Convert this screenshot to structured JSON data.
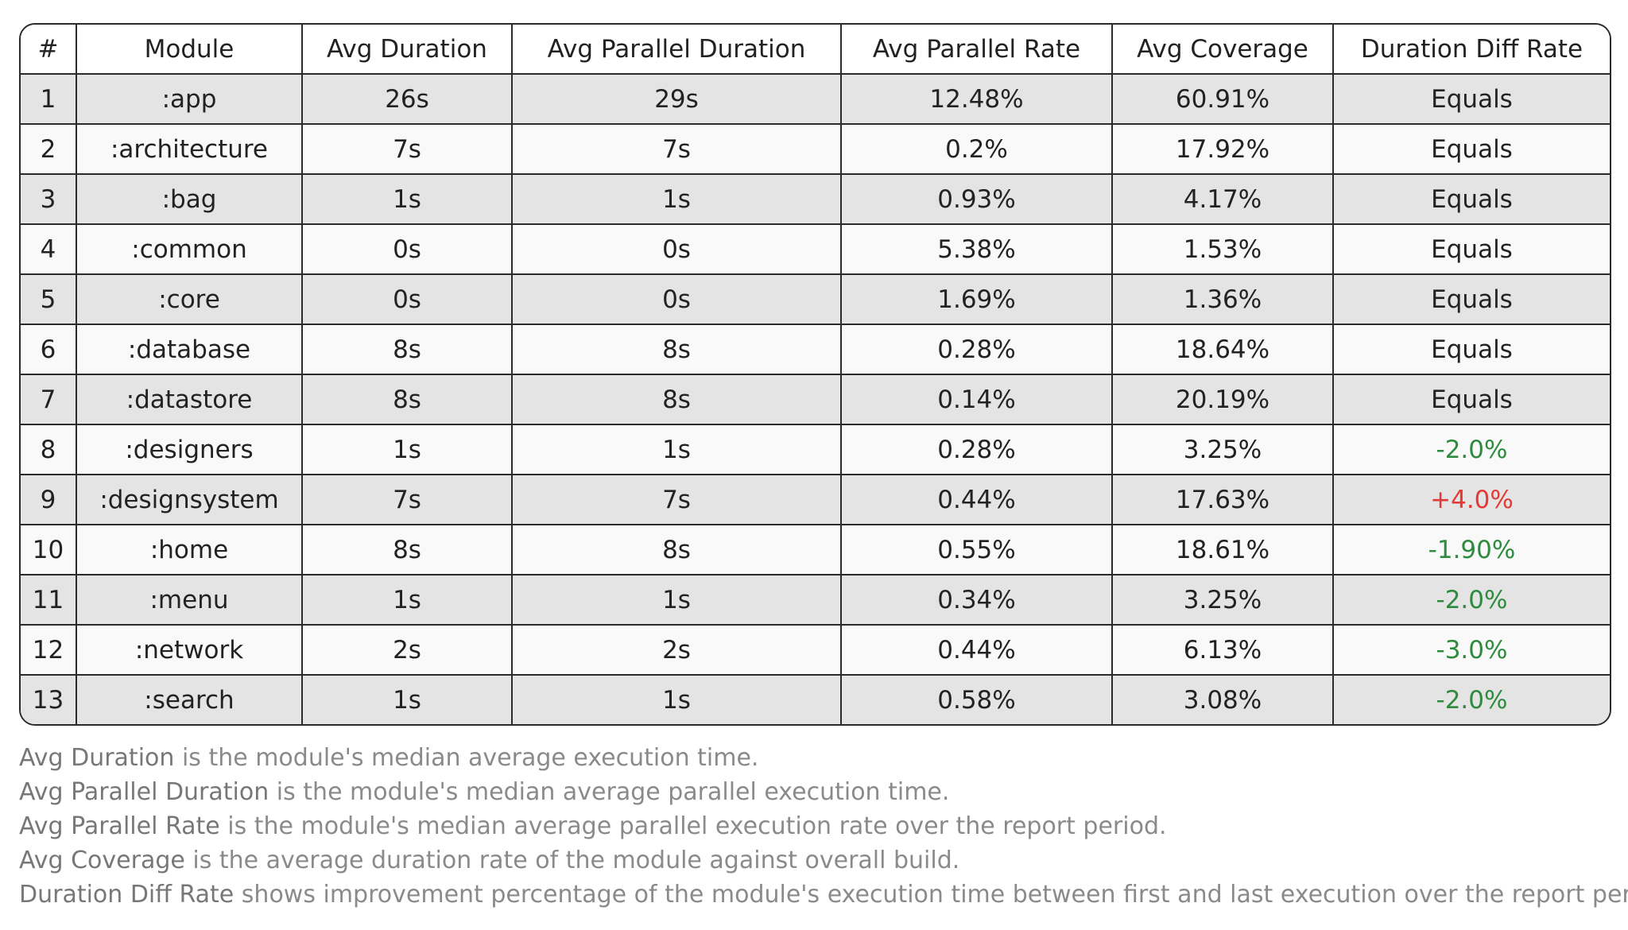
{
  "table": {
    "headers": [
      "#",
      "Module",
      "Avg Duration",
      "Avg Parallel Duration",
      "Avg Parallel Rate",
      "Avg Coverage",
      "Duration Diff Rate"
    ],
    "rows": [
      {
        "index": "1",
        "module": ":app",
        "avg_duration": "26s",
        "avg_parallel_duration": "29s",
        "avg_parallel_rate": "12.48%",
        "avg_coverage": "60.91%",
        "duration_diff_rate": "Equals",
        "diff_trend": "neutral"
      },
      {
        "index": "2",
        "module": ":architecture",
        "avg_duration": "7s",
        "avg_parallel_duration": "7s",
        "avg_parallel_rate": "0.2%",
        "avg_coverage": "17.92%",
        "duration_diff_rate": "Equals",
        "diff_trend": "neutral"
      },
      {
        "index": "3",
        "module": ":bag",
        "avg_duration": "1s",
        "avg_parallel_duration": "1s",
        "avg_parallel_rate": "0.93%",
        "avg_coverage": "4.17%",
        "duration_diff_rate": "Equals",
        "diff_trend": "neutral"
      },
      {
        "index": "4",
        "module": ":common",
        "avg_duration": "0s",
        "avg_parallel_duration": "0s",
        "avg_parallel_rate": "5.38%",
        "avg_coverage": "1.53%",
        "duration_diff_rate": "Equals",
        "diff_trend": "neutral"
      },
      {
        "index": "5",
        "module": ":core",
        "avg_duration": "0s",
        "avg_parallel_duration": "0s",
        "avg_parallel_rate": "1.69%",
        "avg_coverage": "1.36%",
        "duration_diff_rate": "Equals",
        "diff_trend": "neutral"
      },
      {
        "index": "6",
        "module": ":database",
        "avg_duration": "8s",
        "avg_parallel_duration": "8s",
        "avg_parallel_rate": "0.28%",
        "avg_coverage": "18.64%",
        "duration_diff_rate": "Equals",
        "diff_trend": "neutral"
      },
      {
        "index": "7",
        "module": ":datastore",
        "avg_duration": "8s",
        "avg_parallel_duration": "8s",
        "avg_parallel_rate": "0.14%",
        "avg_coverage": "20.19%",
        "duration_diff_rate": "Equals",
        "diff_trend": "neutral"
      },
      {
        "index": "8",
        "module": ":designers",
        "avg_duration": "1s",
        "avg_parallel_duration": "1s",
        "avg_parallel_rate": "0.28%",
        "avg_coverage": "3.25%",
        "duration_diff_rate": "-2.0%",
        "diff_trend": "good"
      },
      {
        "index": "9",
        "module": ":designsystem",
        "avg_duration": "7s",
        "avg_parallel_duration": "7s",
        "avg_parallel_rate": "0.44%",
        "avg_coverage": "17.63%",
        "duration_diff_rate": "+4.0%",
        "diff_trend": "bad"
      },
      {
        "index": "10",
        "module": ":home",
        "avg_duration": "8s",
        "avg_parallel_duration": "8s",
        "avg_parallel_rate": "0.55%",
        "avg_coverage": "18.61%",
        "duration_diff_rate": "-1.90%",
        "diff_trend": "good"
      },
      {
        "index": "11",
        "module": ":menu",
        "avg_duration": "1s",
        "avg_parallel_duration": "1s",
        "avg_parallel_rate": "0.34%",
        "avg_coverage": "3.25%",
        "duration_diff_rate": "-2.0%",
        "diff_trend": "good"
      },
      {
        "index": "12",
        "module": ":network",
        "avg_duration": "2s",
        "avg_parallel_duration": "2s",
        "avg_parallel_rate": "0.44%",
        "avg_coverage": "6.13%",
        "duration_diff_rate": "-3.0%",
        "diff_trend": "good"
      },
      {
        "index": "13",
        "module": ":search",
        "avg_duration": "1s",
        "avg_parallel_duration": "1s",
        "avg_parallel_rate": "0.58%",
        "avg_coverage": "3.08%",
        "duration_diff_rate": "-2.0%",
        "diff_trend": "good"
      }
    ]
  },
  "notes": [
    {
      "term": "Avg Duration",
      "text": " is the module's median average execution time."
    },
    {
      "term": "Avg Parallel Duration",
      "text": " is the module's median average parallel execution time."
    },
    {
      "term": "Avg Parallel Rate",
      "text": " is the module's median average parallel execution rate over the report period."
    },
    {
      "term": "Avg Coverage",
      "text": " is the average duration rate of the module against overall build."
    },
    {
      "term": "Duration Diff Rate",
      "text": " shows improvement percentage of the module's execution time between first and last execution over the report period."
    }
  ],
  "colors": {
    "diff_good": "#2e8b3e",
    "diff_bad": "#e53935",
    "diff_neutral": "#222222",
    "note_text": "#8a8a8a"
  }
}
